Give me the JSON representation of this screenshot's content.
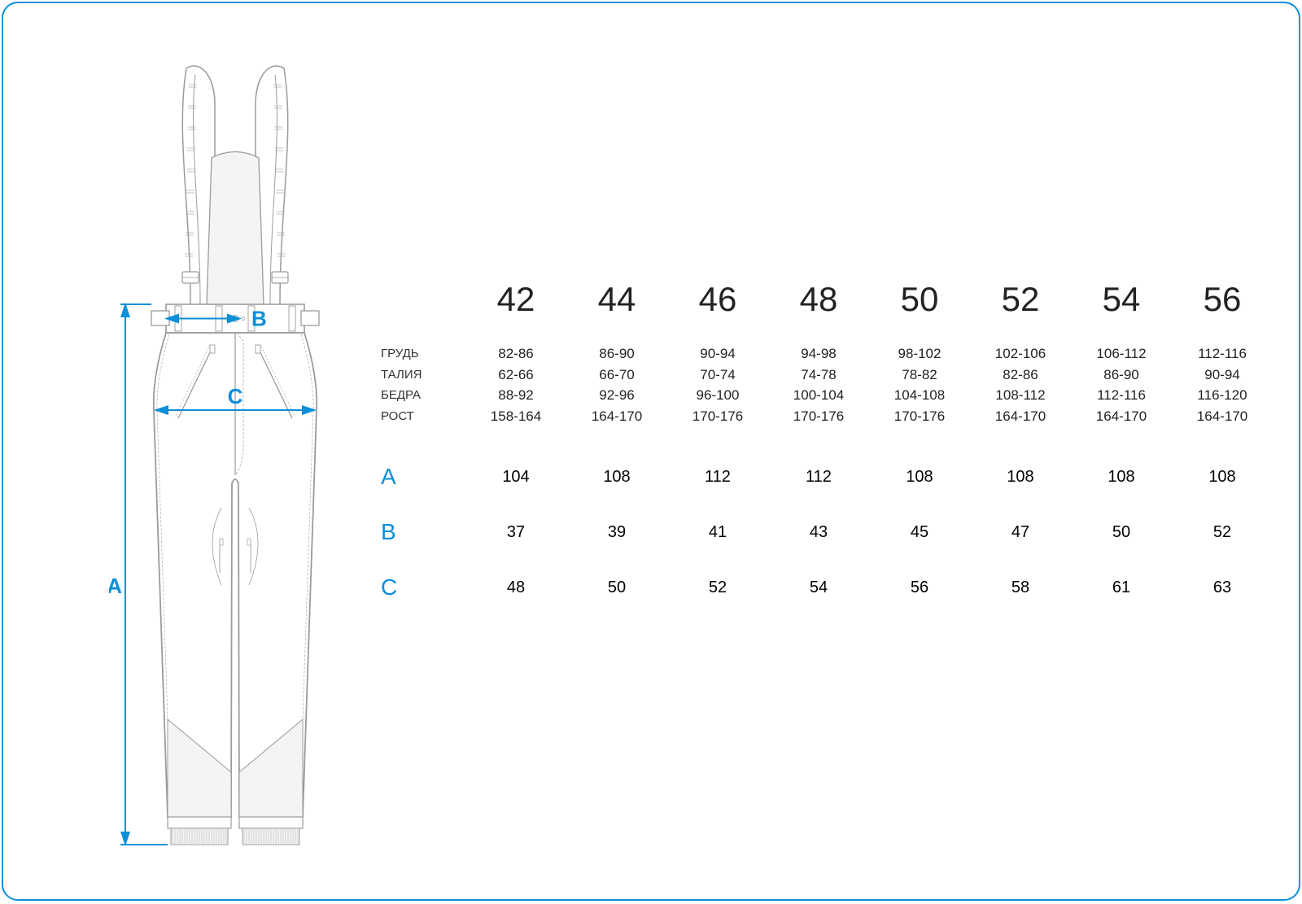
{
  "colors": {
    "border": "#0a8fd8",
    "accent": "#0a8fd8",
    "garment_outline": "#9b9b9b",
    "garment_fill": "#ffffff",
    "garment_shade": "#f4f4f4",
    "text": "#222222"
  },
  "diagram": {
    "labels": {
      "a": "A",
      "b": "B",
      "c": "C"
    }
  },
  "table": {
    "sizes": [
      "42",
      "44",
      "46",
      "48",
      "50",
      "52",
      "54",
      "56"
    ],
    "body_rows": [
      {
        "label": "ГРУДЬ",
        "values": [
          "82-86",
          "86-90",
          "90-94",
          "94-98",
          "98-102",
          "102-106",
          "106-112",
          "112-116"
        ]
      },
      {
        "label": "ТАЛИЯ",
        "values": [
          "62-66",
          "66-70",
          "70-74",
          "74-78",
          "78-82",
          "82-86",
          "86-90",
          "90-94"
        ]
      },
      {
        "label": "БЕДРА",
        "values": [
          "88-92",
          "92-96",
          "96-100",
          "100-104",
          "104-108",
          "108-112",
          "112-116",
          "116-120"
        ]
      },
      {
        "label": "РОСТ",
        "values": [
          "158-164",
          "164-170",
          "170-176",
          "170-176",
          "170-176",
          "164-170",
          "164-170",
          "164-170"
        ]
      }
    ],
    "dim_rows": [
      {
        "label": "A",
        "values": [
          "104",
          "108",
          "112",
          "112",
          "108",
          "108",
          "108",
          "108"
        ]
      },
      {
        "label": "B",
        "values": [
          "37",
          "39",
          "41",
          "43",
          "45",
          "47",
          "50",
          "52"
        ]
      },
      {
        "label": "C",
        "values": [
          "48",
          "50",
          "52",
          "54",
          "56",
          "58",
          "61",
          "63"
        ]
      }
    ]
  }
}
